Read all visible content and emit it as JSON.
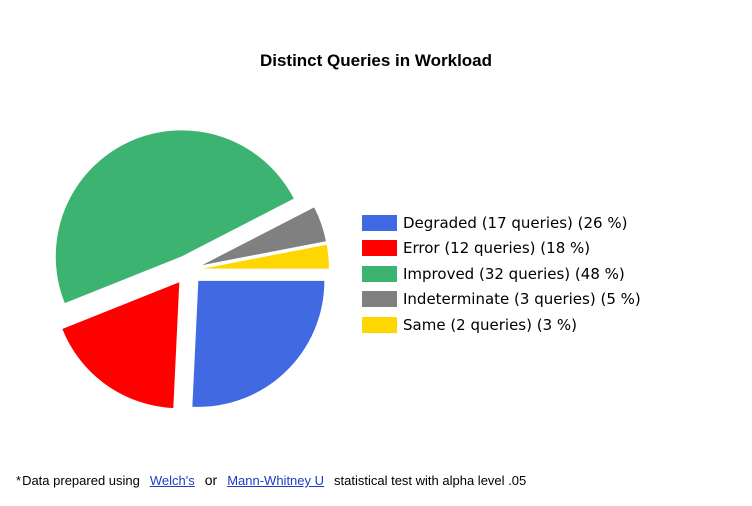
{
  "chart_data": {
    "type": "pie",
    "title": "Distinct Queries in Workload",
    "slices": [
      {
        "name": "Degraded",
        "queries": 17,
        "percent": 26,
        "color": "#4169e1",
        "label": "Degraded (17 queries) (26 %)"
      },
      {
        "name": "Error",
        "queries": 12,
        "percent": 18,
        "color": "#ff0000",
        "label": "Error (12 queries) (18 %)"
      },
      {
        "name": "Improved",
        "queries": 32,
        "percent": 48,
        "color": "#3cb371",
        "label": "Improved (32 queries) (48 %)"
      },
      {
        "name": "Indeterminate",
        "queries": 3,
        "percent": 5,
        "color": "#808080",
        "label": "Indeterminate (3 queries) (5 %)"
      },
      {
        "name": "Same",
        "queries": 2,
        "percent": 3,
        "color": "#ffd700",
        "label": "Same (2 queries) (3 %)"
      }
    ],
    "legend_position": "right"
  },
  "footnote": {
    "prefix": "*",
    "text_before": "Data prepared using",
    "link1": "Welch's",
    "or": "or",
    "link2": "Mann-Whitney U",
    "text_after": "statistical test with alpha level .05"
  }
}
